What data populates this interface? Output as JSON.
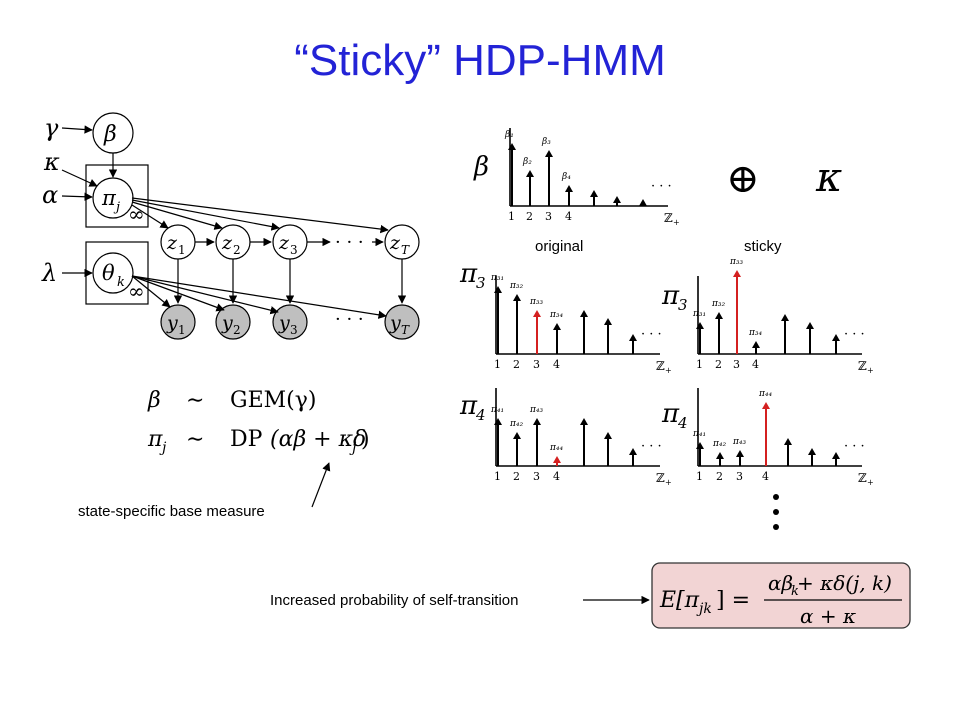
{
  "title": "“Sticky” HDP-HMM",
  "labels": {
    "original": "original",
    "sticky": "sticky",
    "base_measure": "state-specific base measure",
    "self_transition": "Increased probability of self-transition"
  },
  "model": {
    "gamma": "γ",
    "kappa": "κ",
    "alpha": "α",
    "lambda": "λ",
    "beta": "β",
    "pi_j": "π",
    "pi_j_sub": "j",
    "theta_k": "θ",
    "theta_k_sub": "k",
    "infinity": "∞",
    "z": "z",
    "y": "y",
    "idx1": "1",
    "idx2": "2",
    "idx3": "3",
    "idxT": "T",
    "dots": "· · ·"
  },
  "equations": {
    "beta": "β",
    "sim": "∼",
    "gem": "GEM(γ)",
    "pi": "π",
    "pi_sub": "j",
    "dp": "DP",
    "dp_args": "(αβ + κδ",
    "dp_sub": "j",
    "dp_close": ")"
  },
  "stems": {
    "axis_label": "ℤ",
    "axis_sub": "+",
    "ellipsis": "· · ·",
    "beta_symbol": "β",
    "pi3_symbol": "π",
    "pi3_sub": "3",
    "pi4_symbol": "π",
    "pi4_sub": "4",
    "kappa_symbol": "κ",
    "oplus": "⊕",
    "ticks": [
      "1",
      "2",
      "3",
      "4"
    ],
    "beta_stem_labels": [
      "β₁",
      "β₂",
      "β₃",
      "β₄"
    ],
    "pi3_stem_labels": [
      "π₃₁",
      "π₃₂",
      "π₃₃",
      "π₃₄"
    ],
    "pi4_stem_labels": [
      "π₄₁",
      "π₄₂",
      "π₄₃",
      "π₄₄"
    ],
    "highlight_color": "#d42020"
  },
  "formula": {
    "lhs": "E[π",
    "lhs_sub": "jk",
    "lhs_close": "] =",
    "numerator": "αβ",
    "numerator_sub": "k",
    "numerator_rest": " + κδ(j, k)",
    "denominator": "α + κ",
    "box_color": "#f2d4d4"
  },
  "vertical_dots": "·"
}
